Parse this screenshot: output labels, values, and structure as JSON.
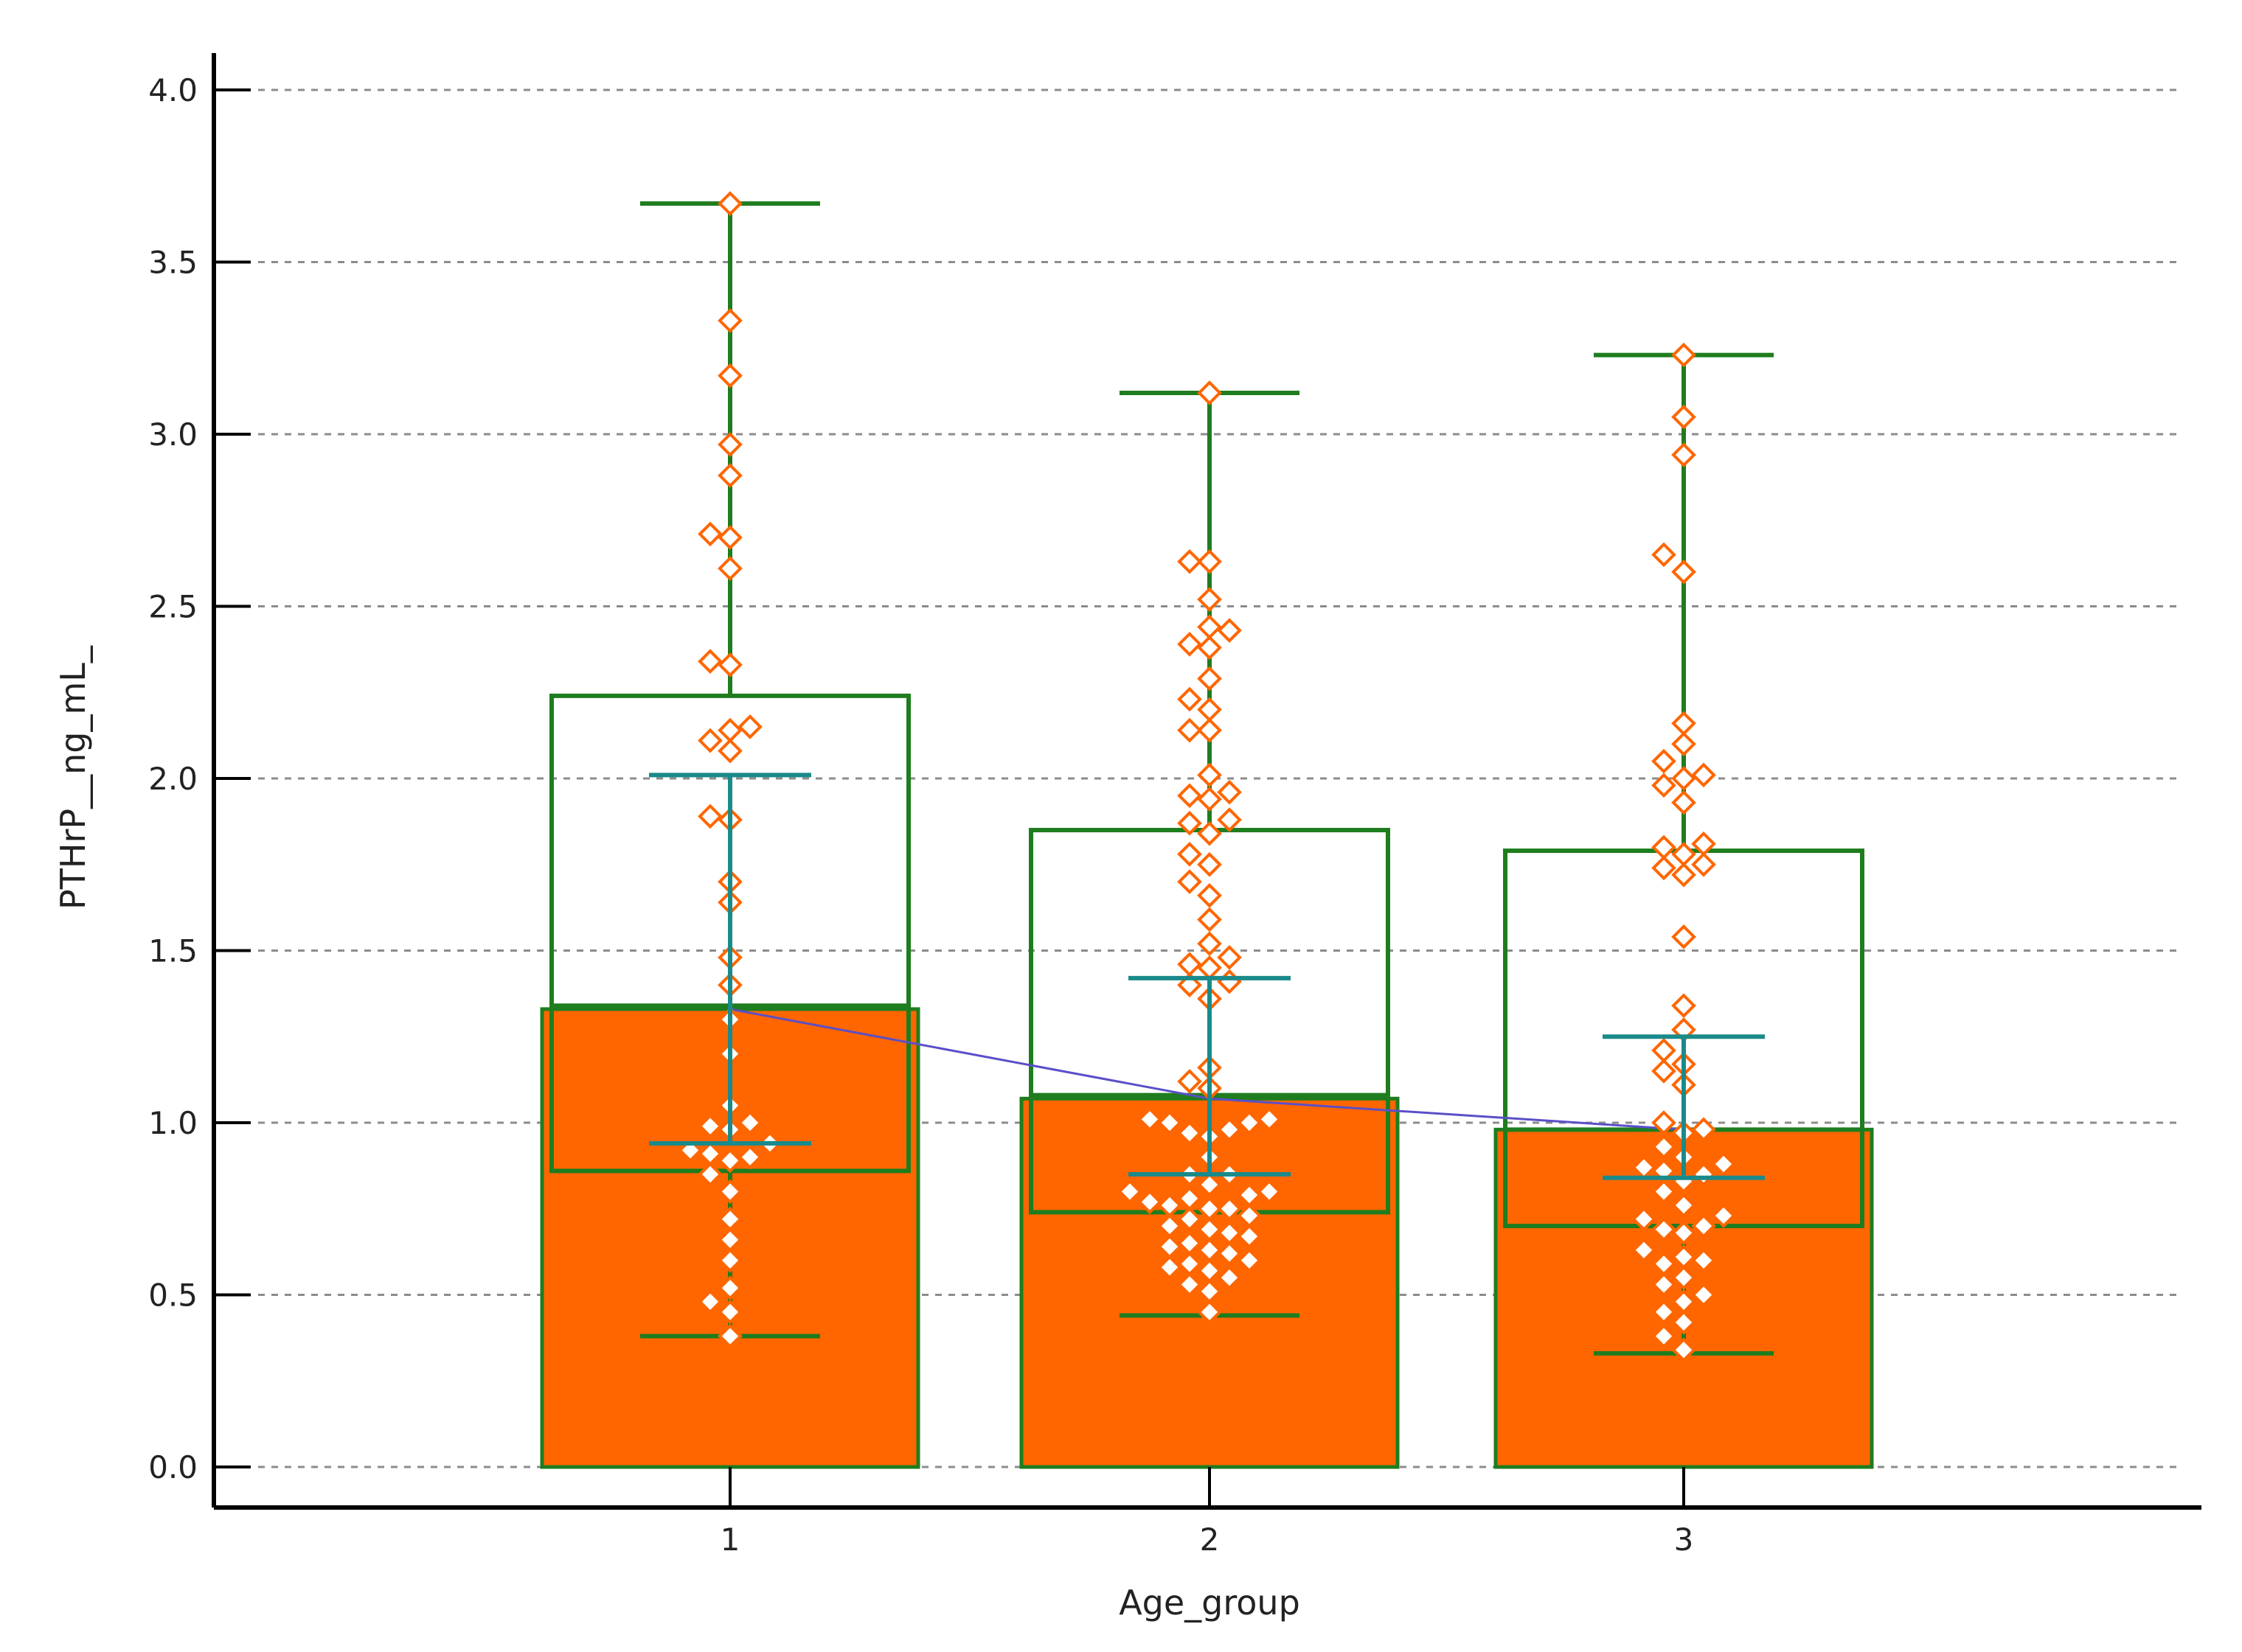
{
  "chart_data": {
    "type": "bar",
    "xlabel": "Age_group",
    "ylabel": "PTHrP__ng_mL_",
    "ylim": [
      0,
      4.0
    ],
    "yticks": [
      "0.0",
      "0.5",
      "1.0",
      "1.5",
      "2.0",
      "2.5",
      "3.0",
      "3.5",
      "4.0"
    ],
    "categories": [
      "1",
      "2",
      "3"
    ],
    "grid": true,
    "bar_values": [
      1.33,
      1.07,
      0.98
    ],
    "boxes": [
      {
        "q1": 0.86,
        "median": 1.34,
        "q3": 2.24,
        "whisker_low": 0.38,
        "whisker_high": 3.67
      },
      {
        "q1": 0.74,
        "median": 1.08,
        "q3": 1.85,
        "whisker_low": 0.44,
        "whisker_high": 3.12
      },
      {
        "q1": 0.7,
        "median": 0.98,
        "q3": 1.79,
        "whisker_low": 0.33,
        "whisker_high": 3.23
      }
    ],
    "error_bars": [
      {
        "mean": 1.33,
        "low": 0.94,
        "high": 2.01
      },
      {
        "mean": 1.07,
        "low": 0.85,
        "high": 1.42
      },
      {
        "mean": 0.98,
        "low": 0.84,
        "high": 1.25
      }
    ],
    "mean_line": [
      1.33,
      1.07,
      0.98
    ],
    "points": [
      [
        3.67,
        3.33,
        3.17,
        2.97,
        2.88,
        2.71,
        2.7,
        2.61,
        2.34,
        2.33,
        2.15,
        2.14,
        2.11,
        2.08,
        1.89,
        1.88,
        1.7,
        1.64,
        1.48,
        1.4,
        1.3,
        1.2,
        1.05,
        1.0,
        0.99,
        0.98,
        0.94,
        0.92,
        0.91,
        0.9,
        0.89,
        0.85,
        0.8,
        0.72,
        0.66,
        0.6,
        0.52,
        0.48,
        0.45,
        0.38
      ],
      [
        3.12,
        2.63,
        2.63,
        2.52,
        2.44,
        2.43,
        2.39,
        2.38,
        2.29,
        2.23,
        2.2,
        2.14,
        2.14,
        2.01,
        1.96,
        1.95,
        1.94,
        1.88,
        1.87,
        1.84,
        1.78,
        1.75,
        1.7,
        1.66,
        1.59,
        1.52,
        1.48,
        1.46,
        1.45,
        1.41,
        1.4,
        1.36,
        1.16,
        1.12,
        1.1,
        1.01,
        1.01,
        1.0,
        1.0,
        0.98,
        0.97,
        0.96,
        0.9,
        0.85,
        0.85,
        0.82,
        0.8,
        0.8,
        0.79,
        0.78,
        0.77,
        0.76,
        0.75,
        0.75,
        0.73,
        0.72,
        0.7,
        0.69,
        0.68,
        0.67,
        0.65,
        0.64,
        0.63,
        0.62,
        0.6,
        0.59,
        0.58,
        0.57,
        0.55,
        0.53,
        0.51,
        0.45
      ],
      [
        3.23,
        3.05,
        2.94,
        2.65,
        2.6,
        2.16,
        2.1,
        2.05,
        2.01,
        2.0,
        1.98,
        1.93,
        1.81,
        1.8,
        1.78,
        1.75,
        1.74,
        1.72,
        1.54,
        1.34,
        1.27,
        1.21,
        1.17,
        1.15,
        1.11,
        1.0,
        0.98,
        0.97,
        0.93,
        0.9,
        0.88,
        0.87,
        0.86,
        0.85,
        0.83,
        0.8,
        0.76,
        0.73,
        0.72,
        0.7,
        0.69,
        0.68,
        0.63,
        0.61,
        0.6,
        0.59,
        0.55,
        0.53,
        0.5,
        0.48,
        0.45,
        0.42,
        0.38,
        0.34
      ]
    ],
    "colors": {
      "bar_fill": "#ff6600",
      "box_stroke": "#1e7d1e",
      "error_bar": "#1a8a8a",
      "mean_line": "#5a4fc8",
      "point_stroke": "#ff6600",
      "grid": "#8c8c8c",
      "axis": "#000000"
    }
  }
}
